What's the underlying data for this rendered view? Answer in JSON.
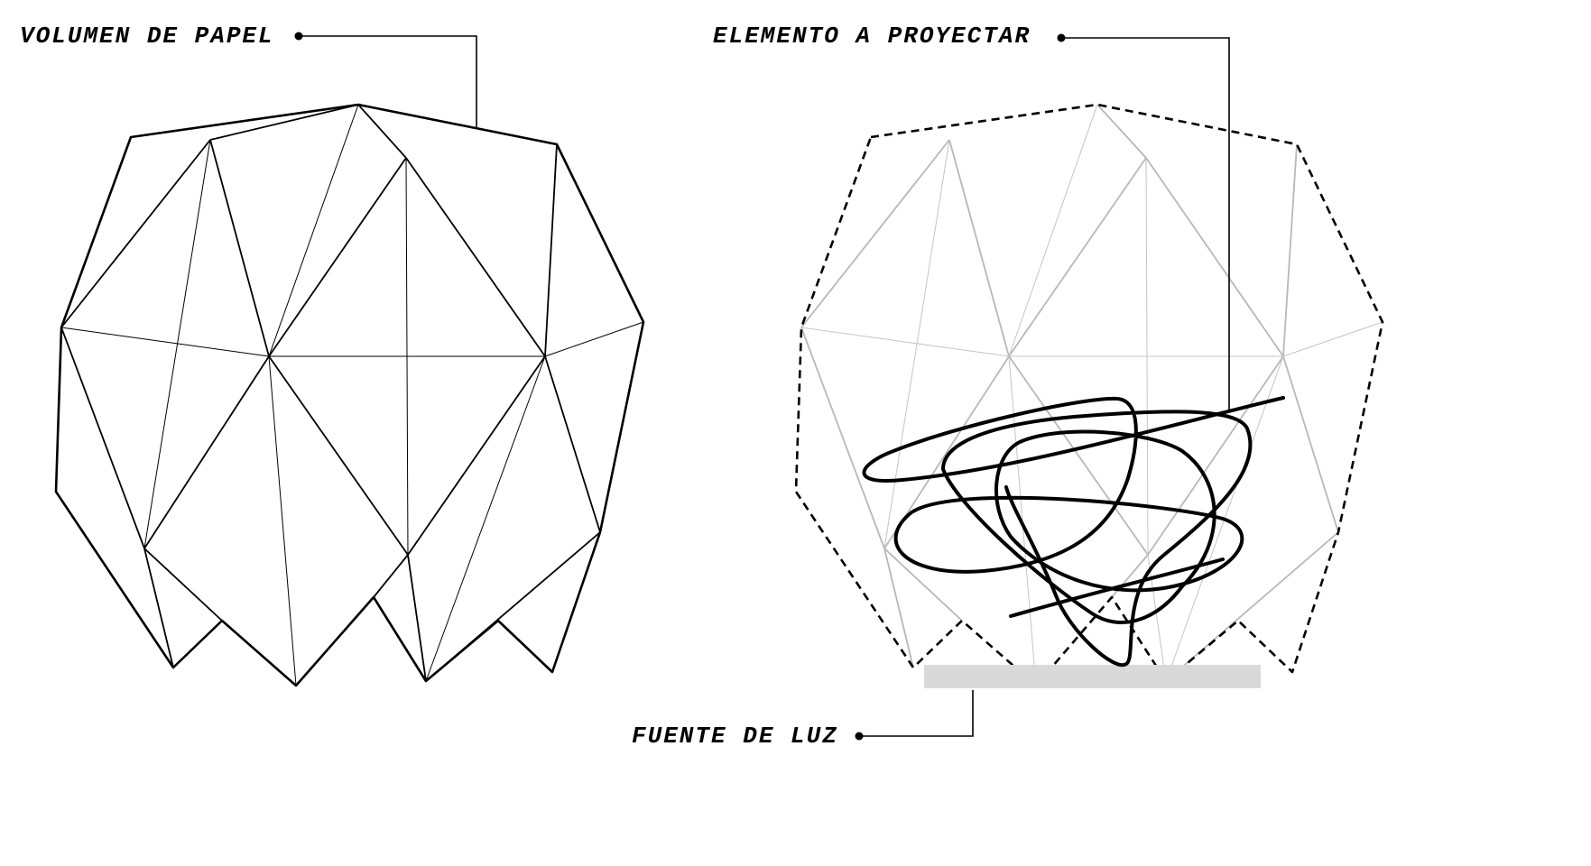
{
  "labels": {
    "paper_volume": "VOLUMEN DE PAPEL",
    "element_to_project": "ELEMENTO A PROYECTAR",
    "light_source": "FUENTE DE LUZ"
  },
  "colors": {
    "ink": "#000000",
    "faded_lines": "#b8b8b8",
    "light_source_fill": "#d9d9d9"
  }
}
